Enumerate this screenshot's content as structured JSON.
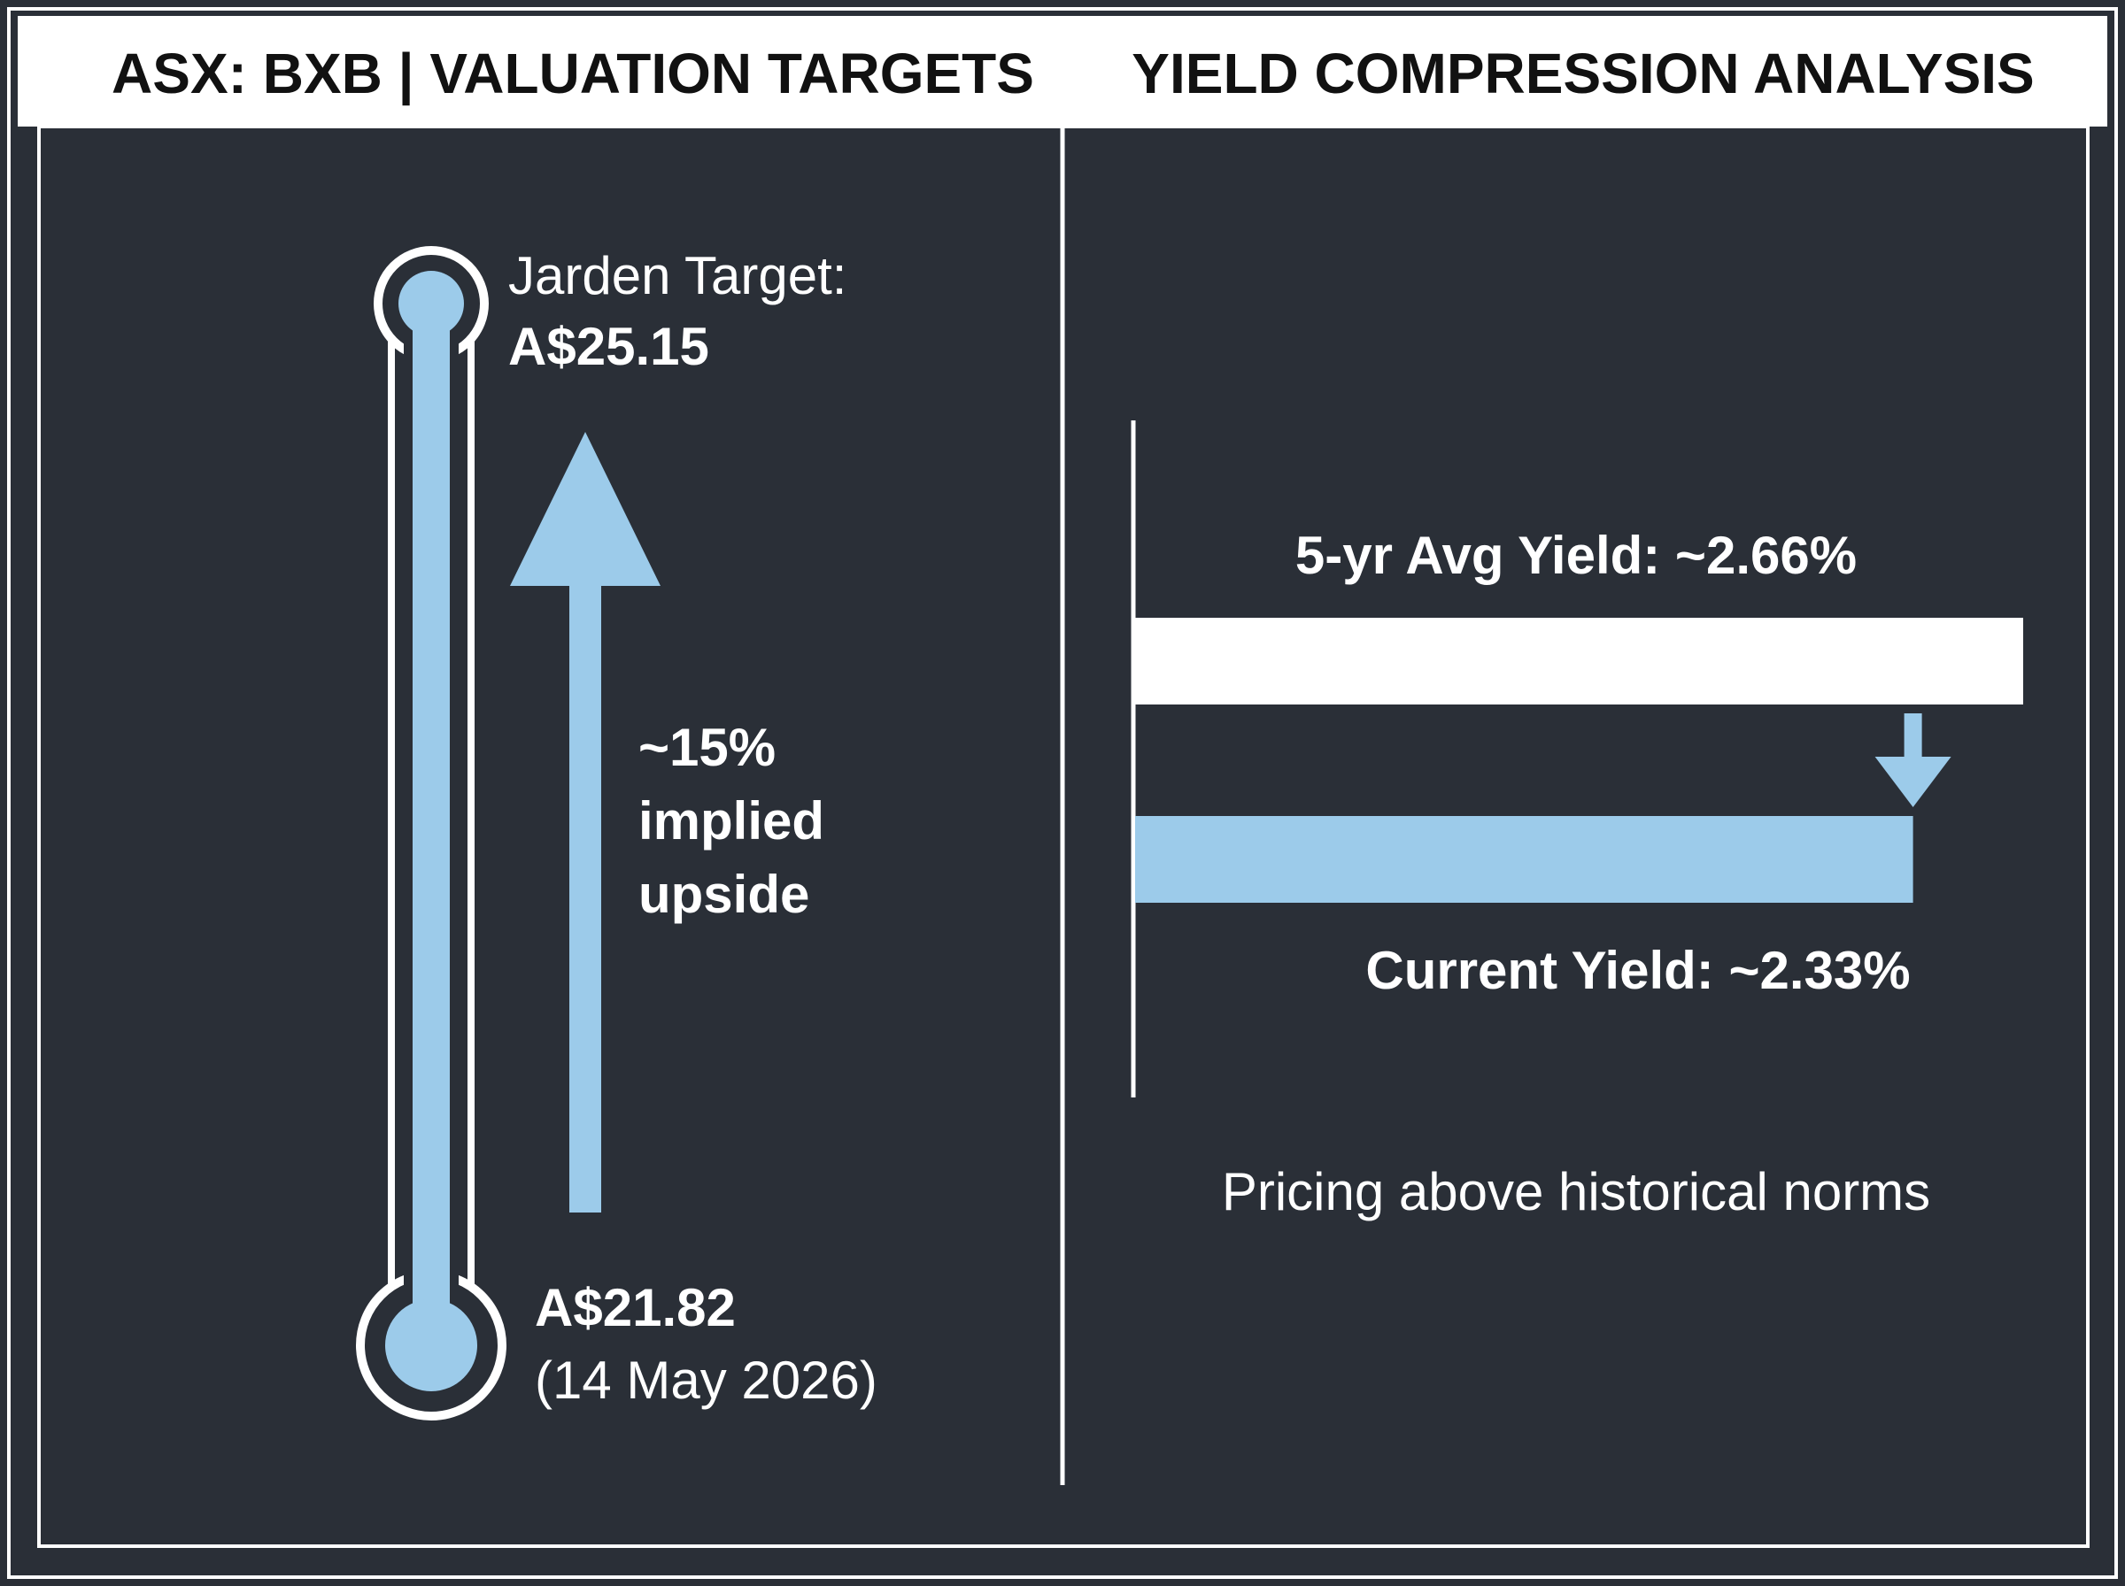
{
  "colors": {
    "background": "#2a2f37",
    "header_bg": "#ffffff",
    "header_text": "#111111",
    "accent_blue": "#9ccbea",
    "line_white": "#ffffff",
    "text_white": "#ffffff"
  },
  "header": {
    "left_title": "ASX: BXB | VALUATION TARGETS",
    "right_title": "YIELD COMPRESSION ANALYSIS"
  },
  "left_panel": {
    "target_label": "Jarden Target:",
    "target_value": "A$25.15",
    "upside_line1": "~15%",
    "upside_line2": "implied",
    "upside_line3": "upside",
    "current_value": "A$21.82",
    "current_date": "(14 May 2026)"
  },
  "right_panel": {
    "avg_label": "5-yr Avg Yield: ~2.66%",
    "current_label": "Current Yield: ~2.33%",
    "note": "Pricing above historical norms"
  },
  "chart_data": [
    {
      "type": "line",
      "title": "ASX: BXB | VALUATION TARGETS",
      "points": [
        {
          "label": "A$21.82",
          "date": "(14 May 2026)",
          "value": 21.82
        },
        {
          "label": "Jarden Target:",
          "value_text": "A$25.15",
          "value": 25.15
        }
      ],
      "annotation": "~15% implied upside"
    },
    {
      "type": "bar",
      "title": "YIELD COMPRESSION ANALYSIS",
      "orientation": "horizontal",
      "categories": [
        "5-yr Avg Yield",
        "Current Yield"
      ],
      "values": [
        2.66,
        2.33
      ],
      "colors": [
        "#ffffff",
        "#9ccbea"
      ],
      "annotation": "Pricing above historical norms"
    }
  ]
}
